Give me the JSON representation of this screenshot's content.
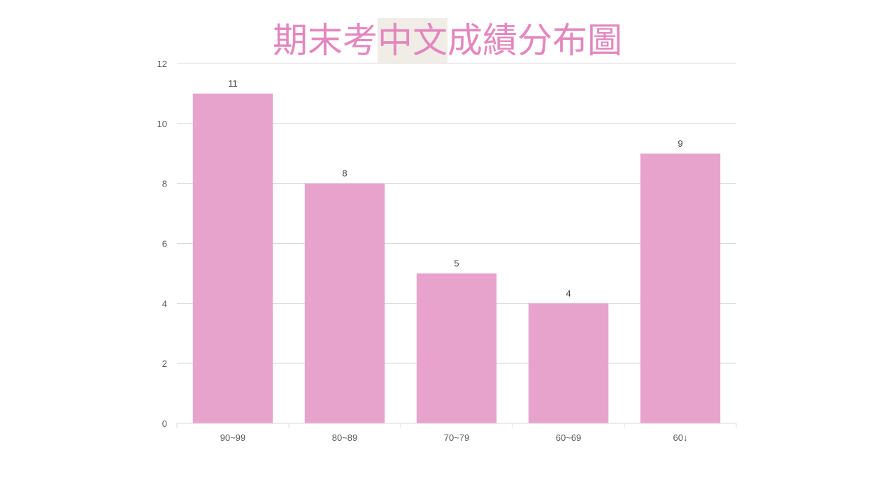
{
  "title": {
    "before": "期末考",
    "highlight": "中文",
    "after": "成績分布圖"
  },
  "colors": {
    "bar": "#e8a3cd",
    "title": "#e387bf",
    "title_highlight_bg": "#f0ece6",
    "grid": "#d9d9d9",
    "axis": "#d9d9d9",
    "tick_text": "#595959",
    "label_text": "#404040"
  },
  "chart_data": {
    "type": "bar",
    "title": "期末考中文成績分布圖",
    "categories": [
      "90~99",
      "80~89",
      "70~79",
      "60~69",
      "60↓"
    ],
    "values": [
      11,
      8,
      5,
      4,
      9
    ],
    "data_labels": [
      "11",
      "8",
      "5",
      "4",
      "9"
    ],
    "y_ticks": [
      "0",
      "2",
      "4",
      "6",
      "8",
      "10",
      "12"
    ],
    "ylim": [
      0,
      12
    ],
    "xlabel": "",
    "ylabel": "",
    "grid": true,
    "legend": false
  }
}
